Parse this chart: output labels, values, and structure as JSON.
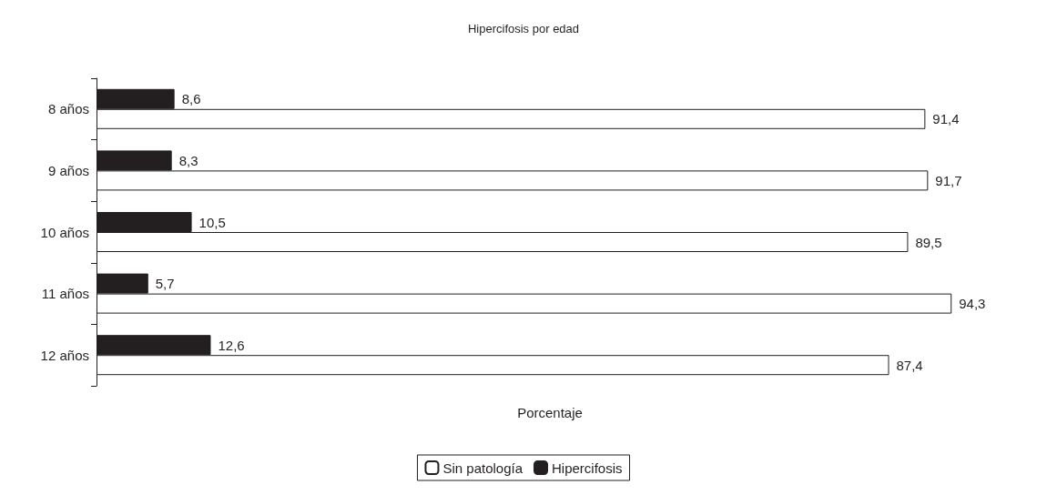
{
  "chart_data": {
    "type": "bar",
    "orientation": "horizontal",
    "title": "Hipercifosis por edad",
    "xlabel": "Porcentaje",
    "categories": [
      "8 años",
      "9 años",
      "10 años",
      "11 años",
      "12 años"
    ],
    "series": [
      {
        "name": "Sin patología",
        "color": "#ffffff",
        "values": [
          91.4,
          91.7,
          89.5,
          94.3,
          87.4
        ],
        "value_labels": [
          "91,4",
          "91,7",
          "89,5",
          "94,3",
          "87,4"
        ]
      },
      {
        "name": "Hipercifosis",
        "color": "#231f20",
        "values": [
          8.6,
          8.3,
          10.5,
          5.7,
          12.6
        ],
        "value_labels": [
          "8,6",
          "8,3",
          "10,5",
          "5,7",
          "12,6"
        ]
      }
    ],
    "legend": "bottom",
    "grid": false
  }
}
